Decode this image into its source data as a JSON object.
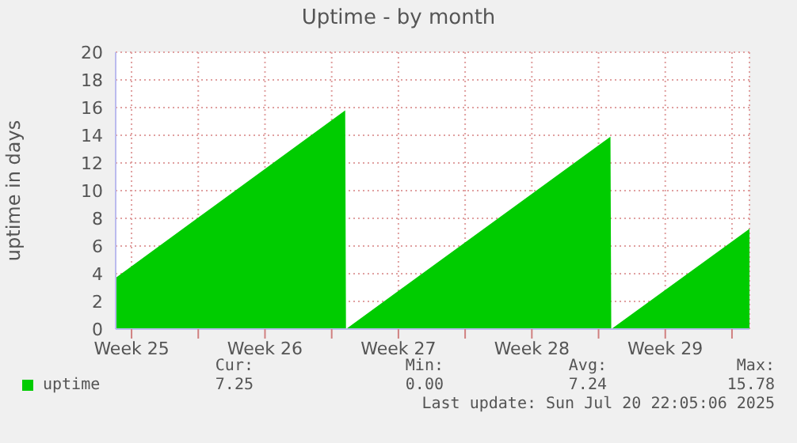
{
  "chart_data": {
    "type": "area",
    "title": "Uptime - by month",
    "ylabel": "uptime in days",
    "x": [
      "2025-06-17T16:00",
      "2025-06-29T17:00",
      "2025-06-29T18:00",
      "2025-07-13T15:00",
      "2025-07-13T16:00",
      "2025-07-20T22:00"
    ],
    "series": [
      {
        "name": "uptime",
        "color": "#00cc00",
        "values": [
          3.7,
          15.8,
          0,
          13.9,
          0,
          7.25
        ]
      }
    ],
    "xlim": [
      "2025-06-17T16:00",
      "2025-07-20T22:00"
    ],
    "xticks": [
      {
        "value": "2025-06-18T12:00",
        "label": "Week 25"
      },
      {
        "value": "2025-06-22",
        "label": null
      },
      {
        "value": "2025-06-25T12:00",
        "label": "Week 26"
      },
      {
        "value": "2025-06-29",
        "label": null
      },
      {
        "value": "2025-07-02T12:00",
        "label": "Week 27"
      },
      {
        "value": "2025-07-06",
        "label": null
      },
      {
        "value": "2025-07-09T12:00",
        "label": "Week 28"
      },
      {
        "value": "2025-07-13",
        "label": null
      },
      {
        "value": "2025-07-16T12:00",
        "label": "Week 29"
      },
      {
        "value": "2025-07-20",
        "label": null
      }
    ],
    "ylim": [
      0,
      20
    ],
    "yticks": [
      0,
      2,
      4,
      6,
      8,
      10,
      12,
      14,
      16,
      18,
      20
    ],
    "grid": true,
    "legend": "bottom left",
    "annotations": [
      "Cur:",
      "Min:",
      "Avg:",
      "Max:",
      "7.25",
      "0.00",
      "7.24",
      "15.78",
      "Last update: Sun Jul 20 22:05:06 2025"
    ]
  }
}
